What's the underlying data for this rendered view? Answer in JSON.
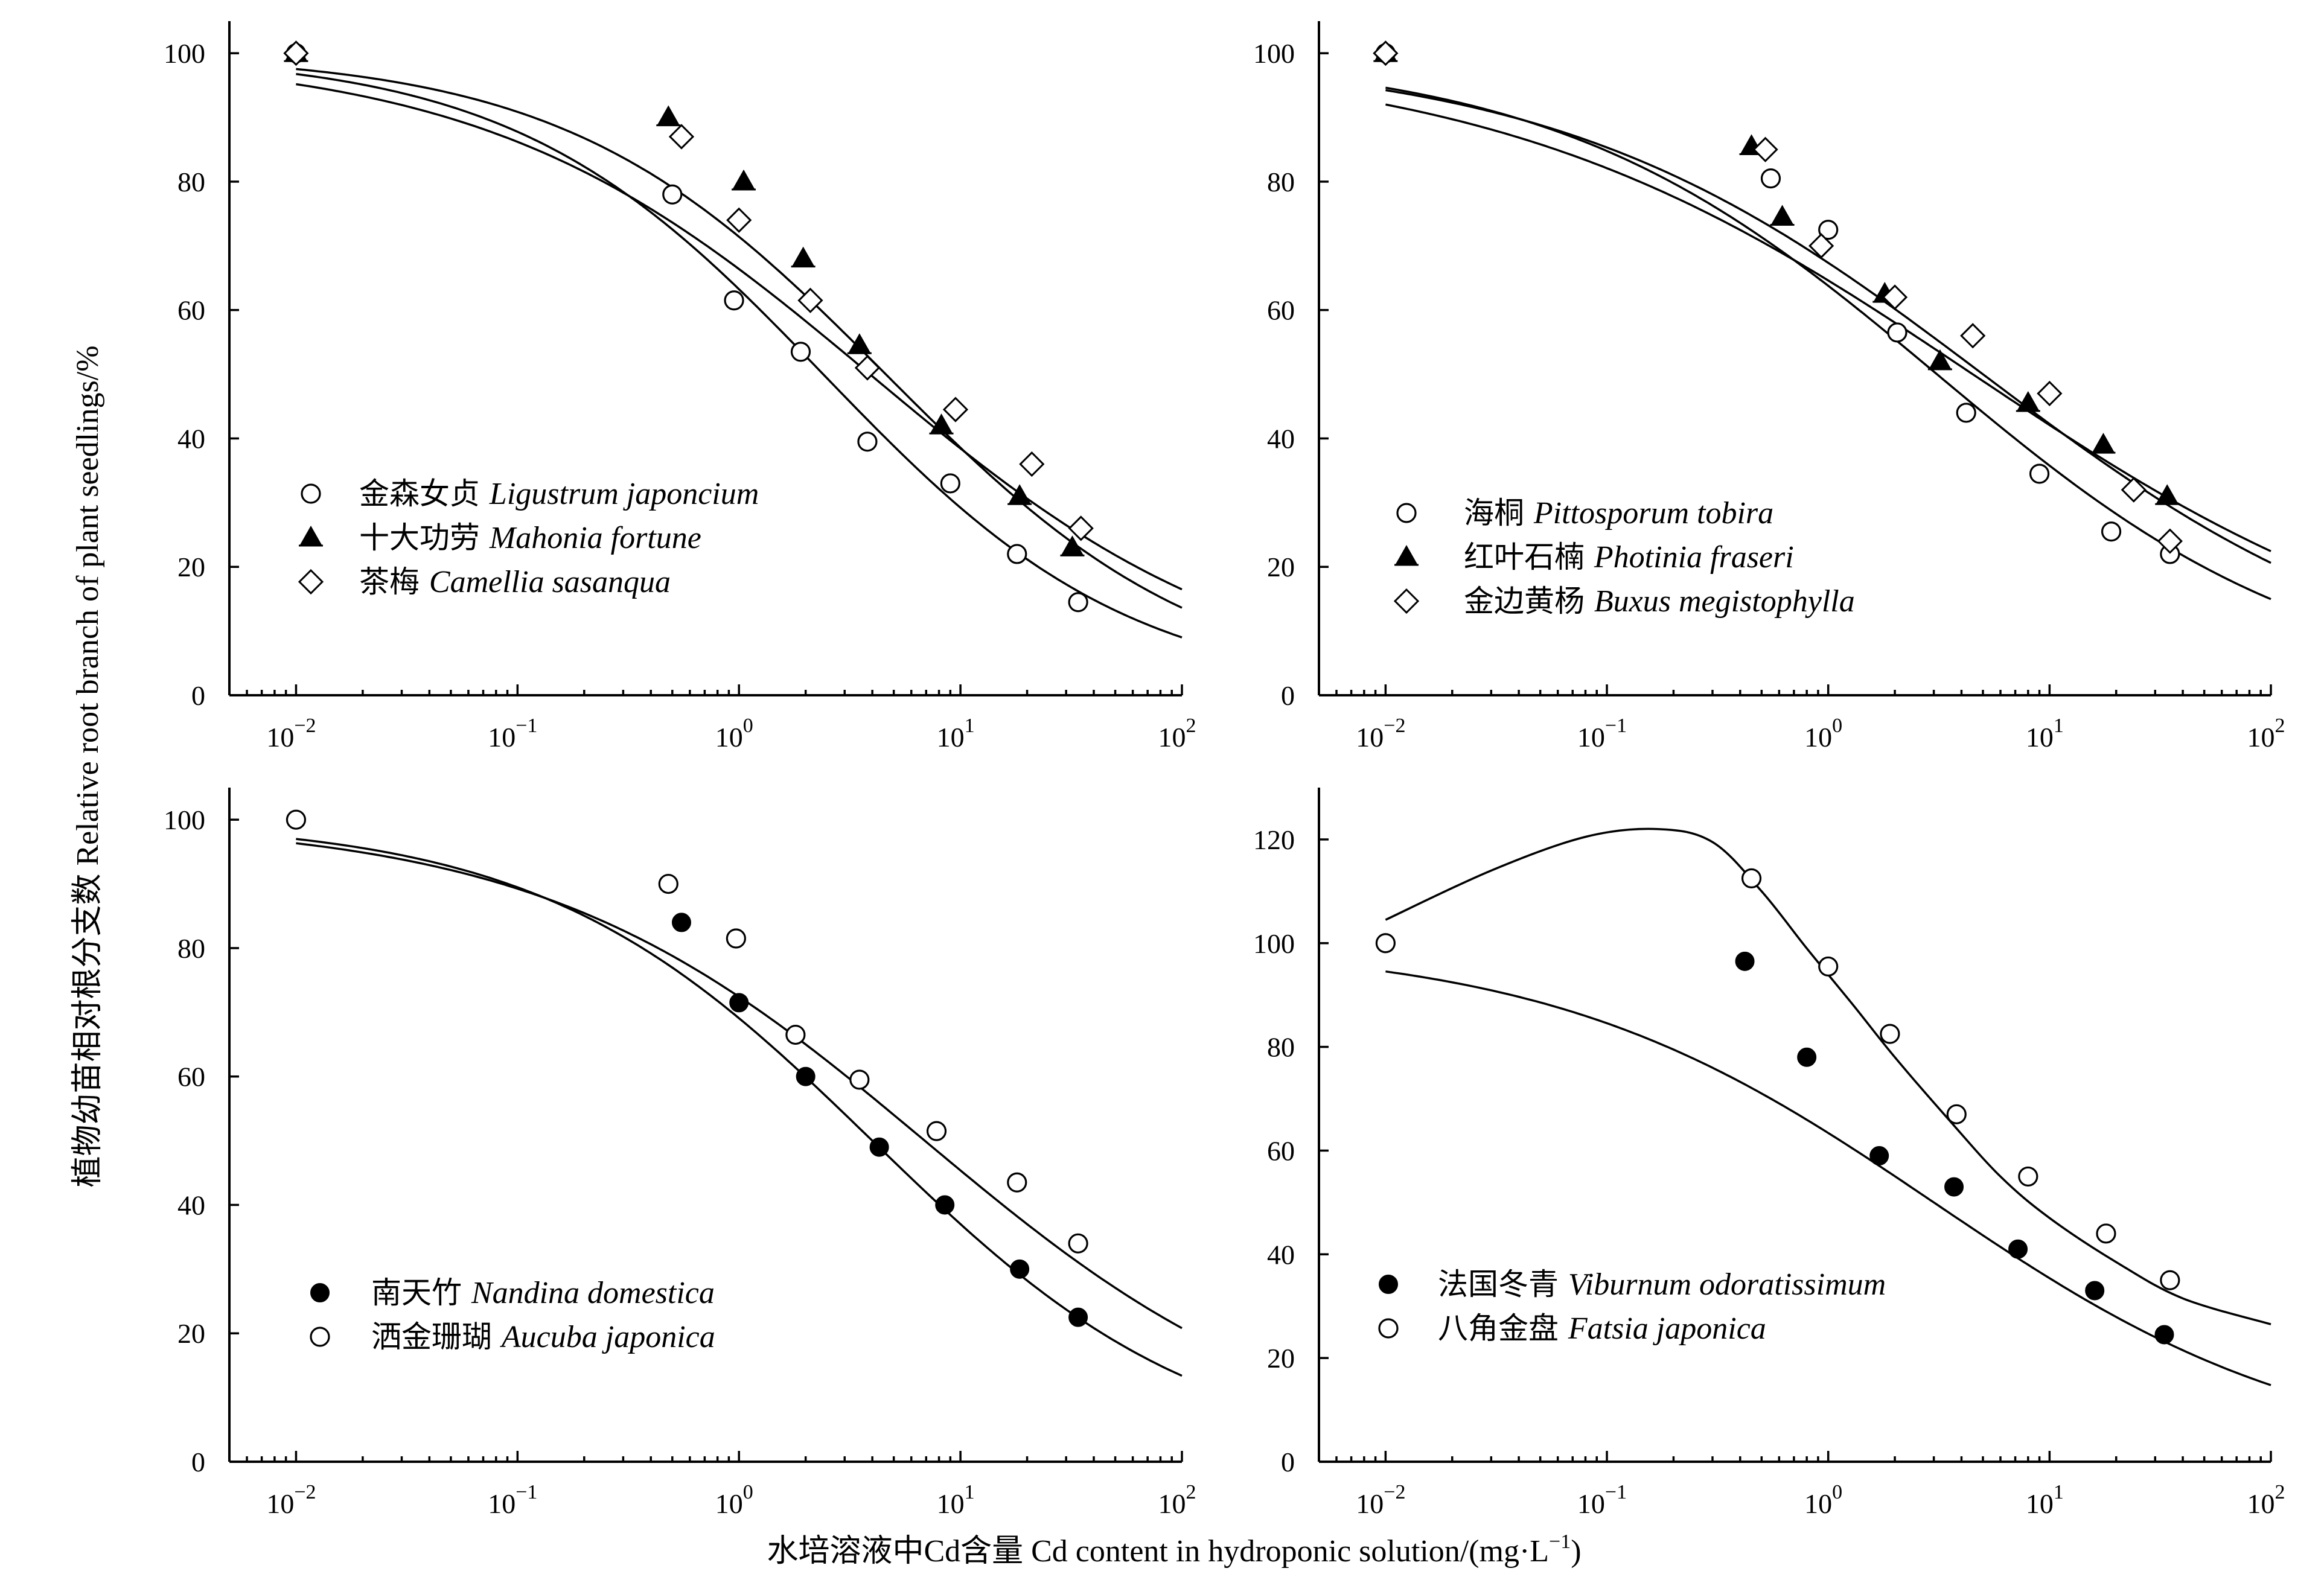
{
  "figure": {
    "ylabel": "植物幼苗相对根分支数 Relative root branch of plant seedlings/%",
    "xlabel_prefix": "水培溶液中Cd含量 Cd content in hydroponic solution/(mg·L",
    "xlabel_sup": "−1",
    "xlabel_suffix": ")"
  },
  "chart_data": [
    {
      "type": "scatter",
      "panel": "top-left",
      "xscale": "log",
      "xlim": [
        0.005,
        100
      ],
      "ylim": [
        0,
        105
      ],
      "yticks": [
        0,
        20,
        40,
        60,
        80,
        100
      ],
      "xtick_labels": [
        [
          "10",
          "−2"
        ],
        [
          "10",
          "−1"
        ],
        [
          "10",
          "0"
        ],
        [
          "10",
          "1"
        ],
        [
          "10",
          "2"
        ]
      ],
      "ytick_labels": [
        "0",
        "20",
        "40",
        "60",
        "80",
        "100"
      ],
      "legend_position": "bottom-left",
      "series": [
        {
          "name_cn": "金森女贞",
          "name_latin": "Ligustrum japoncium",
          "marker": "circle-open",
          "x": [
            0.01,
            0.5,
            0.95,
            1.9,
            3.8,
            9.0,
            18.0,
            34.0
          ],
          "y": [
            100,
            78,
            61.5,
            53.5,
            39.5,
            33,
            22,
            14.5
          ],
          "fit": {
            "top": 100,
            "ec50": 2.4,
            "slope": 0.62
          }
        },
        {
          "name_cn": "十大功劳",
          "name_latin": "Mahonia fortune",
          "marker": "triangle-filled",
          "x": [
            0.01,
            0.48,
            1.05,
            1.95,
            3.5,
            8.2,
            18.5,
            32.0
          ],
          "y": [
            100,
            90,
            80,
            68,
            54.5,
            42,
            31,
            23
          ],
          "fit": {
            "top": 100,
            "ec50": 4.6,
            "slope": 0.6
          }
        },
        {
          "name_cn": "茶梅",
          "name_latin": "Camellia sasanqua",
          "marker": "diamond-open",
          "x": [
            0.01,
            0.55,
            1.0,
            2.1,
            3.8,
            9.5,
            21.0,
            35.0
          ],
          "y": [
            100,
            87,
            74,
            61.5,
            51,
            44.5,
            36,
            26
          ],
          "fit": {
            "top": 100,
            "ec50": 3.9,
            "slope": 0.5
          }
        }
      ]
    },
    {
      "type": "scatter",
      "panel": "top-right",
      "xscale": "log",
      "xlim": [
        0.005,
        100
      ],
      "ylim": [
        0,
        105
      ],
      "yticks": [
        0,
        20,
        40,
        60,
        80,
        100
      ],
      "xtick_labels": [
        [
          "10",
          "−2"
        ],
        [
          "10",
          "−1"
        ],
        [
          "10",
          "0"
        ],
        [
          "10",
          "1"
        ],
        [
          "10",
          "2"
        ]
      ],
      "ytick_labels": [
        "0",
        "20",
        "40",
        "60",
        "80",
        "100"
      ],
      "legend_position": "bottom-left",
      "series": [
        {
          "name_cn": "海桐",
          "name_latin": "Pittosporum tobira",
          "marker": "circle-open",
          "x": [
            0.01,
            0.55,
            1.0,
            2.05,
            4.2,
            9.0,
            19.0,
            35.0
          ],
          "y": [
            100,
            80.5,
            72.5,
            56.5,
            44,
            34.5,
            25.5,
            22
          ],
          "fit": {
            "top": 100,
            "ec50": 3.1,
            "slope": 0.5
          }
        },
        {
          "name_cn": "红叶石楠",
          "name_latin": "Photinia fraseri",
          "marker": "triangle-filled",
          "x": [
            0.01,
            0.45,
            0.62,
            1.8,
            3.2,
            8.0,
            17.5,
            34.0
          ],
          "y": [
            100,
            85.5,
            74.5,
            62.5,
            52,
            45.5,
            39,
            31
          ],
          "fit": {
            "top": 100,
            "ec50": 4.5,
            "slope": 0.4
          }
        },
        {
          "name_cn": "金边黄杨",
          "name_latin": "Buxus megistophylla",
          "marker": "diamond-open",
          "x": [
            0.01,
            0.52,
            0.93,
            2.0,
            4.5,
            10.0,
            24.0,
            35.0
          ],
          "y": [
            100,
            85,
            70,
            62,
            56,
            47,
            32,
            24
          ],
          "fit": {
            "top": 100,
            "ec50": 5.0,
            "slope": 0.45
          }
        }
      ]
    },
    {
      "type": "scatter",
      "panel": "bottom-left",
      "xscale": "log",
      "xlim": [
        0.005,
        100
      ],
      "ylim": [
        0,
        105
      ],
      "yticks": [
        0,
        20,
        40,
        60,
        80,
        100
      ],
      "xtick_labels": [
        [
          "10",
          "−2"
        ],
        [
          "10",
          "−1"
        ],
        [
          "10",
          "0"
        ],
        [
          "10",
          "1"
        ],
        [
          "10",
          "2"
        ]
      ],
      "ytick_labels": [
        "0",
        "20",
        "40",
        "60",
        "80",
        "100"
      ],
      "legend_position": "bottom-left",
      "series": [
        {
          "name_cn": "南天竹",
          "name_latin": "Nandina domestica",
          "marker": "circle-filled",
          "x": [
            0.55,
            1.0,
            2.0,
            4.3,
            8.5,
            18.5,
            34.0
          ],
          "y": [
            84,
            71.5,
            60,
            49,
            40,
            30,
            22.5
          ],
          "fit": {
            "top": 100,
            "ec50": 4.0,
            "slope": 0.58
          }
        },
        {
          "name_cn": "洒金珊瑚",
          "name_latin": "Aucuba japonica",
          "marker": "circle-open",
          "x": [
            0.01,
            0.48,
            0.97,
            1.8,
            3.5,
            7.8,
            18.0,
            34.0
          ],
          "y": [
            100,
            90,
            81.5,
            66.5,
            59.5,
            51.5,
            43.5,
            34
          ],
          "fit": {
            "top": 100,
            "ec50": 6.9,
            "slope": 0.5
          }
        }
      ]
    },
    {
      "type": "scatter",
      "panel": "bottom-right",
      "xscale": "log",
      "xlim": [
        0.005,
        100
      ],
      "ylim": [
        0,
        130
      ],
      "yticks": [
        0,
        20,
        40,
        60,
        80,
        100,
        120
      ],
      "xtick_labels": [
        [
          "10",
          "−2"
        ],
        [
          "10",
          "−1"
        ],
        [
          "10",
          "0"
        ],
        [
          "10",
          "1"
        ],
        [
          "10",
          "2"
        ]
      ],
      "ytick_labels": [
        "0",
        "20",
        "40",
        "60",
        "80",
        "100",
        "120"
      ],
      "legend_position": "bottom-left",
      "series": [
        {
          "name_cn": "法国冬青",
          "name_latin": "Viburnum odoratissimum",
          "marker": "circle-filled",
          "x": [
            0.42,
            0.8,
            1.7,
            3.7,
            7.2,
            16.0,
            33.0
          ],
          "y": [
            96.5,
            78,
            59,
            53,
            41,
            33,
            24.5
          ],
          "fit": {
            "top": 100,
            "ec50": 3.0,
            "slope": 0.5
          }
        },
        {
          "name_cn": "八角金盘",
          "name_latin": "Fatsia japonica",
          "marker": "circle-open",
          "x": [
            0.01,
            0.45,
            1.0,
            1.9,
            3.8,
            8.0,
            18.0,
            35.0
          ],
          "y": [
            100,
            112.5,
            95.5,
            82.5,
            67,
            55,
            44,
            35
          ],
          "fit": {
            "points": [
              [
                0.01,
                104.5
              ],
              [
                0.03,
                114
              ],
              [
                0.08,
                120.5
              ],
              [
                0.17,
                122
              ],
              [
                0.3,
                119.5
              ],
              [
                0.5,
                110
              ],
              [
                0.8,
                99
              ],
              [
                1.3,
                88
              ],
              [
                2.0,
                78
              ],
              [
                3.5,
                66
              ],
              [
                6.0,
                55
              ],
              [
                10.0,
                47
              ],
              [
                20.0,
                38.5
              ],
              [
                40.0,
                31.5
              ],
              [
                100.0,
                26.5
              ]
            ]
          }
        }
      ]
    }
  ]
}
